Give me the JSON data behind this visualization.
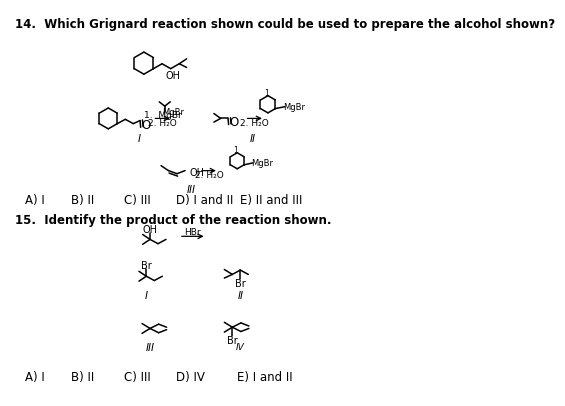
{
  "title14": "14.  Which Grignard reaction shown could be used to prepare the alcohol shown?",
  "title15": "15.  Identify the product of the reaction shown.",
  "answer14": [
    "A) I",
    "B) II",
    "C) III",
    "D) I and II",
    "E) II and III"
  ],
  "answer15": [
    "A) I",
    "B) II",
    "C) III",
    "D) IV",
    "E) I and II"
  ],
  "bg_color": "#ffffff",
  "text_color": "#000000",
  "line_color": "#000000",
  "font_size": 8.5
}
